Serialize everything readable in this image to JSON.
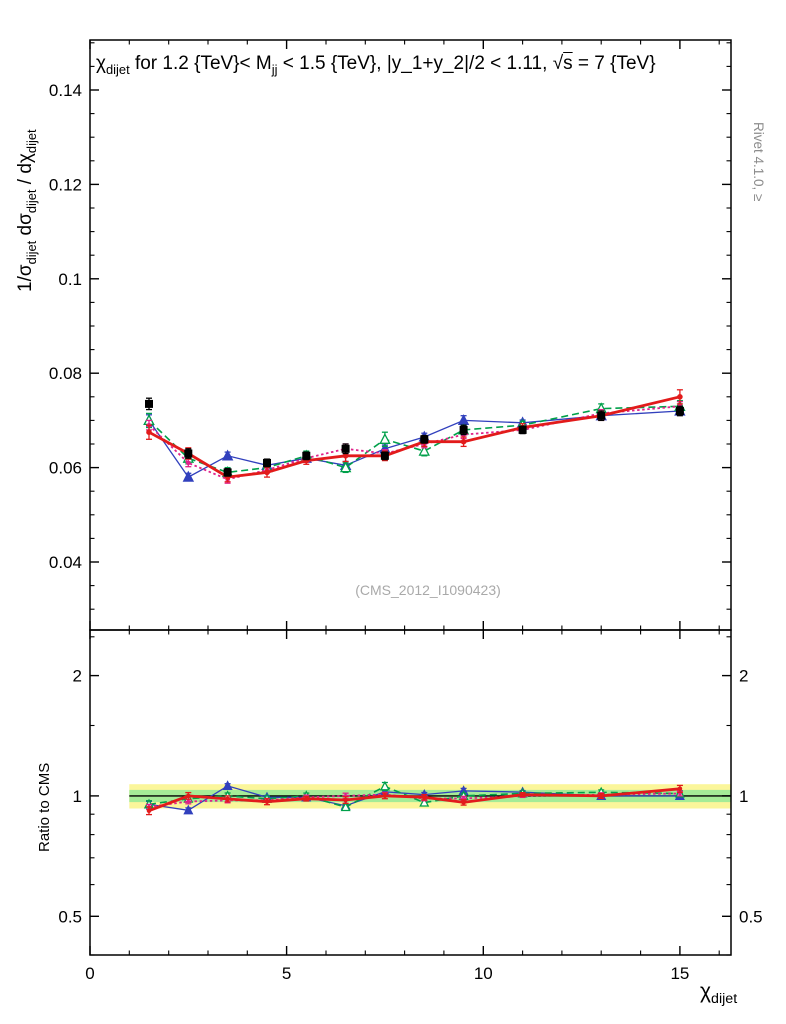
{
  "chart_data": {
    "type": "line",
    "title_text": "χ_dijet for 1.2 {TeV}< M_jj < 1.5 {TeV}, |y_1+y_2|/2 < 1.11, √s = 7 {TeV}",
    "title_segments": [
      {
        "t": "χ"
      },
      {
        "sub": "dijet"
      },
      {
        "t": " for 1.2 {TeV}< M"
      },
      {
        "sub": "jj"
      },
      {
        "t": " < 1.5 {TeV}, |y_1+y_2|/2 < 1.11, "
      },
      {
        "t": "√"
      },
      {
        "t": "s",
        "over": true
      },
      {
        "t": " = 7 {TeV}"
      }
    ],
    "ylabel_text": "1/σ_dijet dσ_dijet / dχ_dijet",
    "ylabel_segments": [
      {
        "t": "1/σ"
      },
      {
        "sub": "dijet"
      },
      {
        "t": " dσ"
      },
      {
        "sub": "dijet"
      },
      {
        "t": " / dχ"
      },
      {
        "sub": "dijet"
      }
    ],
    "xlabel_text": "χ_dijet",
    "xlabel_segments": [
      {
        "t": "χ"
      },
      {
        "sub": "dijet"
      }
    ],
    "ratio_ylabel": "Ratio to CMS",
    "watermark": "(CMS_2012_I1090423)",
    "rivet_label": "Rivet 4.1.0, ≥",
    "legend_position": "none",
    "grid": false,
    "x_axis": {
      "lim": [
        0,
        16.3
      ],
      "ticks": [
        0,
        5,
        10,
        15
      ],
      "minor_step": 1
    },
    "y_main": {
      "scale": "linear",
      "lim": [
        0.0256,
        0.1506
      ],
      "ticks": [
        0.04,
        0.06,
        0.08,
        0.1,
        0.12,
        0.14
      ],
      "minor_step": 0.005
    },
    "y_ratio": {
      "scale": "log",
      "lim": [
        0.4,
        2.6
      ],
      "ticks": [
        0.5,
        1,
        2
      ],
      "minor_ticks": [
        0.4,
        0.6,
        0.7,
        0.8,
        0.9,
        1.5,
        2.5
      ]
    },
    "x": [
      1.5,
      2.5,
      3.5,
      4.5,
      5.5,
      6.5,
      7.5,
      8.5,
      9.5,
      11,
      13,
      15
    ],
    "ratio_bands": [
      {
        "lo": 0.93,
        "hi": 1.07,
        "color": "#fbf69b",
        "x_range": [
          1,
          16.3
        ]
      },
      {
        "lo": 0.965,
        "hi": 1.035,
        "color": "#a5ec97",
        "x_range": [
          1,
          16.3
        ]
      }
    ],
    "reference_line": {
      "y": 1,
      "color": "#000000",
      "x_range": [
        1,
        16.3
      ]
    },
    "series": [
      {
        "name": "CMS",
        "role": "reference",
        "color": "#000000",
        "marker": "square",
        "marker_size": 8,
        "line": "none",
        "line_width": 0,
        "values": [
          0.0735,
          0.063,
          0.059,
          0.061,
          0.0625,
          0.064,
          0.0625,
          0.066,
          0.068,
          0.068,
          0.071,
          0.072
        ],
        "errs": [
          0.0012,
          0.001,
          0.0008,
          0.0008,
          0.0008,
          0.001,
          0.0008,
          0.0008,
          0.001,
          0.0008,
          0.001,
          0.001
        ]
      },
      {
        "name": "mc-blue-triangles",
        "role": "mc",
        "color": "#3140bd",
        "marker": "triangle",
        "marker_size": 8,
        "line": "solid",
        "line_width": 1.3,
        "values": [
          0.07,
          0.058,
          0.0625,
          0.0605,
          0.062,
          0.0605,
          0.064,
          0.0665,
          0.07,
          0.0695,
          0.071,
          0.072
        ],
        "errs": [
          0.0012,
          0.0008,
          0.0008,
          0.0006,
          0.0006,
          0.0008,
          0.0008,
          0.0008,
          0.001,
          0.0006,
          0.0008,
          0.0008
        ]
      },
      {
        "name": "mc-green-open-triangles",
        "role": "mc",
        "color": "#00a04a",
        "marker": "open-triangle",
        "marker_size": 8,
        "line": "dashed",
        "line_width": 1.6,
        "values": [
          0.07,
          0.062,
          0.059,
          0.06,
          0.0625,
          0.06,
          0.066,
          0.0635,
          0.068,
          0.069,
          0.0725,
          0.073
        ],
        "errs": [
          0.0015,
          0.0012,
          0.001,
          0.0008,
          0.001,
          0.001,
          0.0015,
          0.001,
          0.001,
          0.0008,
          0.001,
          0.0012
        ]
      },
      {
        "name": "mc-magenta-dotted",
        "role": "mc",
        "color": "#e0218a",
        "marker": "dot",
        "marker_size": 4.5,
        "line": "dotted",
        "line_width": 1.8,
        "values": [
          0.069,
          0.061,
          0.0575,
          0.0595,
          0.062,
          0.064,
          0.063,
          0.065,
          0.067,
          0.068,
          0.0715,
          0.073
        ],
        "errs": [
          0.001,
          0.0008,
          0.0008,
          0.0006,
          0.0008,
          0.001,
          0.0008,
          0.0008,
          0.0008,
          0.0006,
          0.0008,
          0.001
        ]
      },
      {
        "name": "mc-red-line",
        "role": "mc",
        "color": "#e21b1b",
        "marker": "dot",
        "marker_size": 5.5,
        "line": "solid",
        "line_width": 2.8,
        "values": [
          0.0675,
          0.063,
          0.058,
          0.059,
          0.0615,
          0.0625,
          0.0625,
          0.0655,
          0.0655,
          0.0685,
          0.071,
          0.075
        ],
        "errs": [
          0.0015,
          0.0012,
          0.001,
          0.001,
          0.0008,
          0.0012,
          0.001,
          0.001,
          0.001,
          0.0008,
          0.001,
          0.0015
        ]
      }
    ]
  }
}
